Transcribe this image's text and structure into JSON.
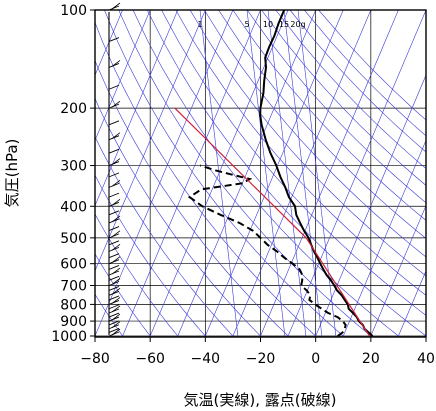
{
  "chart_data": {
    "type": "line",
    "subtype": "skew-t log-p thermodynamic diagram",
    "title": "",
    "xlabel": "気温(実線), 露点(破線)",
    "ylabel": "気圧(hPa)",
    "xlim": [
      -80,
      40
    ],
    "ylim": [
      1050,
      100
    ],
    "y_scale": "log",
    "grid": true,
    "x_ticks": [
      -80,
      -60,
      -40,
      -20,
      0,
      20,
      40
    ],
    "x_tick_labels": [
      "−80",
      "−60",
      "−40",
      "−20",
      "0",
      "20",
      "40"
    ],
    "y_ticks": [
      100,
      200,
      300,
      400,
      500,
      600,
      700,
      800,
      900,
      1000
    ],
    "y_tick_labels": [
      "100",
      "200",
      "300",
      "400",
      "500",
      "600",
      "700",
      "800",
      "900",
      "1000"
    ],
    "mixing_ratio_labels": [
      "1",
      "5",
      "10",
      "15",
      "20g"
    ],
    "series": [
      {
        "style": "solid",
        "color": "#000000",
        "points": [
          [
            1000,
            20.6
          ],
          [
            975,
            18.6
          ],
          [
            950,
            16.6
          ],
          [
            925,
            15.4
          ],
          [
            900,
            13.4
          ],
          [
            875,
            12.0
          ],
          [
            850,
            10.0
          ],
          [
            825,
            7.8
          ],
          [
            800,
            6.8
          ],
          [
            775,
            5.0
          ],
          [
            750,
            3.2
          ],
          [
            725,
            0.8
          ],
          [
            700,
            -1.0
          ],
          [
            675,
            -3.0
          ],
          [
            650,
            -5.4
          ],
          [
            625,
            -7.4
          ],
          [
            600,
            -9.4
          ],
          [
            575,
            -11.4
          ],
          [
            550,
            -13.6
          ],
          [
            525,
            -15.6
          ],
          [
            500,
            -17.6
          ],
          [
            475,
            -20.4
          ],
          [
            450,
            -23.0
          ],
          [
            425,
            -25.6
          ],
          [
            400,
            -27.4
          ],
          [
            375,
            -31.0
          ],
          [
            350,
            -33.8
          ],
          [
            325,
            -37.2
          ],
          [
            300,
            -40.4
          ],
          [
            275,
            -44.4
          ],
          [
            250,
            -48.2
          ],
          [
            225,
            -52.0
          ],
          [
            210,
            -54.0
          ],
          [
            200,
            -55.0
          ],
          [
            190,
            -55.6
          ],
          [
            180,
            -56.2
          ],
          [
            165,
            -57.8
          ],
          [
            150,
            -59.2
          ],
          [
            140,
            -61.0
          ],
          [
            130,
            -61.2
          ],
          [
            120,
            -61.0
          ],
          [
            110,
            -61.4
          ],
          [
            100,
            -61.4
          ]
        ]
      },
      {
        "style": "dashed",
        "color": "#000000",
        "points": [
          [
            1000,
            8.0
          ],
          [
            975,
            9.2
          ],
          [
            950,
            9.4
          ],
          [
            925,
            9.2
          ],
          [
            900,
            7.5
          ],
          [
            875,
            5.0
          ],
          [
            850,
            1.0
          ],
          [
            825,
            -2.0
          ],
          [
            800,
            -5.0
          ],
          [
            775,
            -7.8
          ],
          [
            750,
            -8.2
          ],
          [
            725,
            -10.2
          ],
          [
            700,
            -13.0
          ],
          [
            675,
            -13.4
          ],
          [
            650,
            -14.2
          ],
          [
            625,
            -16.0
          ],
          [
            600,
            -19.4
          ],
          [
            575,
            -23.4
          ],
          [
            550,
            -27.0
          ],
          [
            525,
            -31.4
          ],
          [
            500,
            -35.0
          ],
          [
            475,
            -39.0
          ],
          [
            450,
            -45.0
          ],
          [
            425,
            -53.0
          ],
          [
            400,
            -61.0
          ],
          [
            375,
            -67.0
          ],
          [
            355,
            -64.0
          ],
          [
            340,
            -50.0
          ],
          [
            330,
            -48.0
          ],
          [
            320,
            -55.0
          ],
          [
            310,
            -62.0
          ],
          [
            300,
            -68.0
          ]
        ]
      },
      {
        "style": "solid",
        "color": "#d0203c",
        "points": [
          [
            1000,
            19.5
          ],
          [
            500,
            -18.5
          ],
          [
            200,
            -86.0
          ]
        ]
      }
    ],
    "wind_barbs": "one barb per pressure level along the left edge (100–1000 hPa)"
  }
}
